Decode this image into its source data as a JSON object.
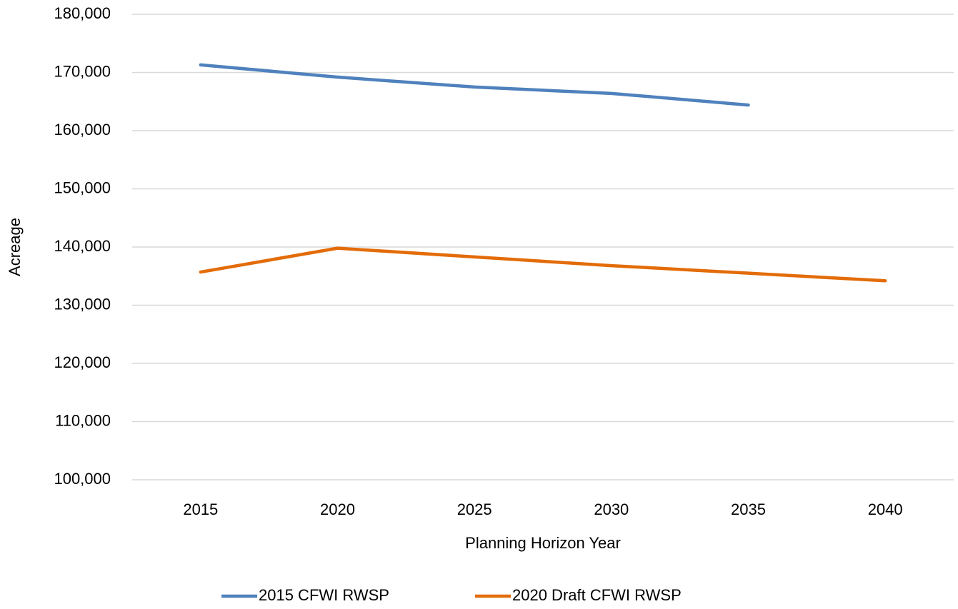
{
  "chart_data": {
    "type": "line",
    "x_label": "Planning Horizon Year",
    "y_label": "Acreage",
    "categories": [
      "2015",
      "2020",
      "2025",
      "2030",
      "2035",
      "2040"
    ],
    "series": [
      {
        "name": "2015 CFWI RWSP",
        "color": "#4f81bd",
        "values": [
          171300,
          169200,
          167500,
          166400,
          164400,
          null
        ]
      },
      {
        "name": "2020 Draft CFWI RWSP",
        "color": "#e36c09",
        "values": [
          135700,
          139800,
          138300,
          136800,
          135500,
          134200
        ]
      }
    ],
    "ylim": [
      100000,
      180000
    ],
    "yticks": [
      {
        "value": 100000,
        "label": "100,000"
      },
      {
        "value": 110000,
        "label": "110,000"
      },
      {
        "value": 120000,
        "label": "120,000"
      },
      {
        "value": 130000,
        "label": "130,000"
      },
      {
        "value": 140000,
        "label": "140,000"
      },
      {
        "value": 150000,
        "label": "150,000"
      },
      {
        "value": 160000,
        "label": "160,000"
      },
      {
        "value": 170000,
        "label": "170,000"
      },
      {
        "value": 180000,
        "label": "180,000"
      }
    ],
    "grid": true,
    "legend": "bottom"
  }
}
